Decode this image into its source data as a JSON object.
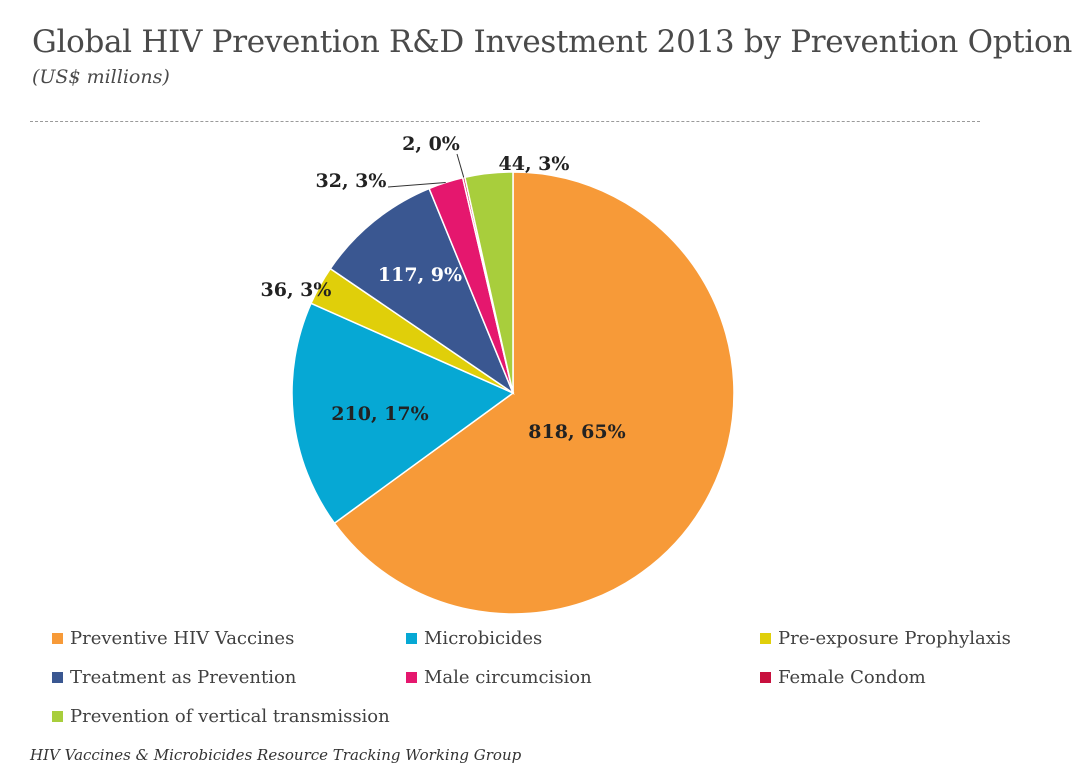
{
  "title": "Global HIV Prevention R&D Investment 2013 by Prevention Option",
  "subtitle": "(US$ millions)",
  "footer": "HIV Vaccines & Microbicides Resource Tracking Working Group",
  "chart_data": {
    "type": "pie",
    "title": "Global HIV Prevention R&D Investment 2013 by Prevention Option",
    "subtitle": "(US$ millions)",
    "slices": [
      {
        "name": "Preventive HIV Vaccines",
        "value": 818,
        "label": "818, 65%",
        "color": "#F79A38"
      },
      {
        "name": "Microbicides",
        "value": 210,
        "label": "210, 17%",
        "color": "#06A8D4"
      },
      {
        "name": "Pre-exposure Prophylaxis",
        "value": 36,
        "label": "36, 3%",
        "color": "#E0CF0A"
      },
      {
        "name": "Treatment as Prevention",
        "value": 117,
        "label": "117, 9%",
        "color": "#3A5791"
      },
      {
        "name": "Male circumcision",
        "value": 32,
        "label": "32, 3%",
        "color": "#E5176E"
      },
      {
        "name": "Female Condom",
        "value": 2,
        "label": "2, 0%",
        "color": "#C8103E"
      },
      {
        "name": "Prevention of vertical transmission",
        "value": 44,
        "label": "44, 3%",
        "color": "#A8CE3C"
      }
    ],
    "legend_position": "bottom"
  }
}
